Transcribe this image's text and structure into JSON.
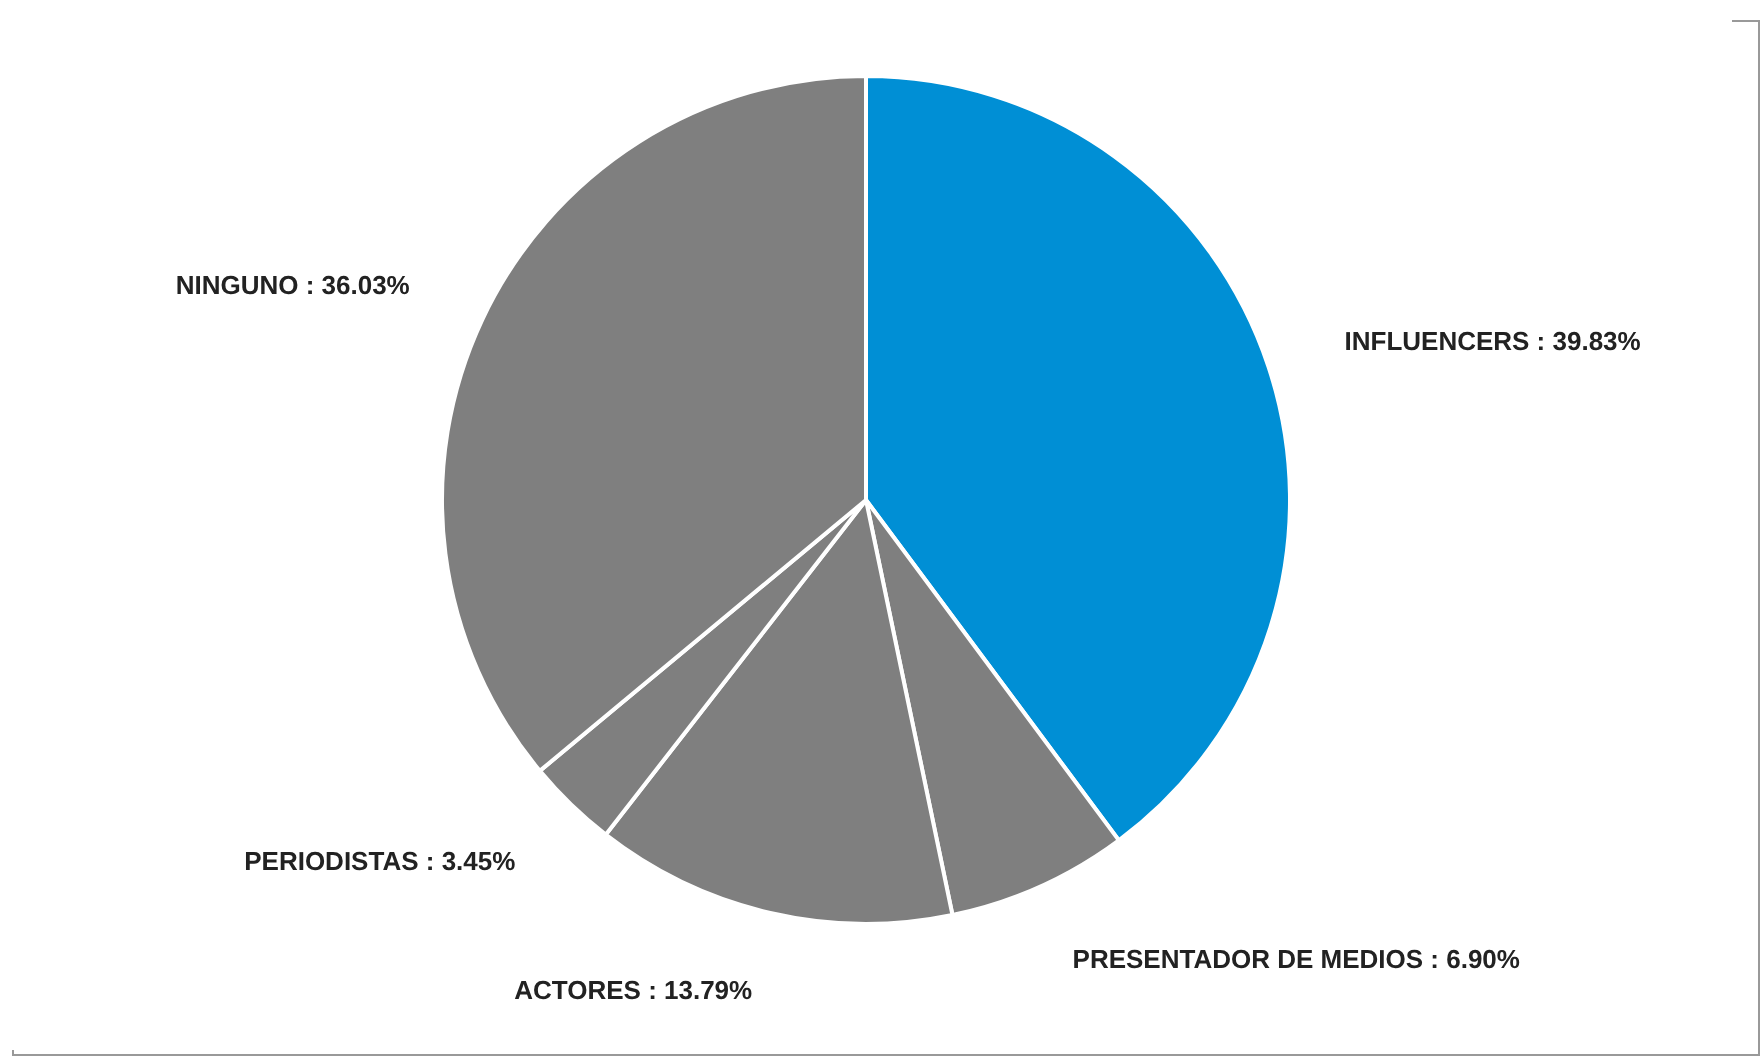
{
  "chart_data": {
    "type": "pie",
    "categories": [
      "INFLUENCERS",
      "PRESENTADOR DE MEDIOS",
      "ACTORES",
      "PERIODISTAS",
      "NINGUNO"
    ],
    "values": [
      39.83,
      6.9,
      13.79,
      3.45,
      36.03
    ],
    "value_labels": [
      "39.83%",
      "6.90%",
      "13.79%",
      "3.45%",
      "36.03%"
    ],
    "colors": [
      "#008fd5",
      "#7f7f7f",
      "#7f7f7f",
      "#7f7f7f",
      "#7f7f7f"
    ]
  }
}
